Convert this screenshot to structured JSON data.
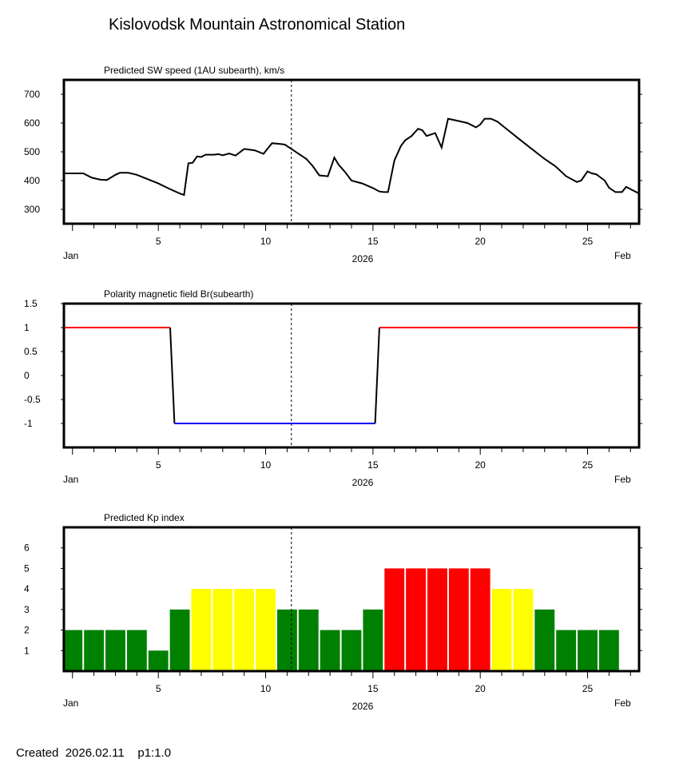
{
  "page": {
    "title": "Kislovodsk Mountain Astronomical Station",
    "footer_created_label": "Created",
    "footer_date": "2026.02.11",
    "footer_version": "p1:1.0"
  },
  "x_axis": {
    "range_days": [
      0.6,
      27.4
    ],
    "current_marker_day": 11.2,
    "tick_days": [
      1,
      2,
      3,
      4,
      5,
      6,
      7,
      8,
      9,
      10,
      11,
      12,
      13,
      14,
      15,
      16,
      17,
      18,
      19,
      20,
      21,
      22,
      23,
      24,
      25,
      26,
      27
    ],
    "labeled_ticks": [
      {
        "day": 5,
        "label": "5"
      },
      {
        "day": 10,
        "label": "10"
      },
      {
        "day": 15,
        "label": "15"
      },
      {
        "day": 20,
        "label": "20"
      },
      {
        "day": 25,
        "label": "25"
      }
    ],
    "start_label": "Jan",
    "end_label": "Feb",
    "year_label": "2026"
  },
  "chart_data": [
    {
      "type": "line",
      "title": "Predicted SW speed (1AU subearth), km/s",
      "ylim": [
        250,
        750
      ],
      "yticks": [
        300,
        400,
        500,
        600,
        700
      ],
      "series": [
        {
          "name": "SW speed",
          "color": "#000000",
          "x": [
            0.6,
            1.5,
            1.9,
            2.3,
            2.6,
            3.0,
            3.2,
            3.6,
            4.0,
            4.5,
            5.0,
            5.5,
            6.0,
            6.2,
            6.4,
            6.6,
            6.8,
            7.0,
            7.2,
            7.6,
            7.8,
            8.0,
            8.3,
            8.6,
            9.0,
            9.2,
            9.5,
            9.9,
            10.1,
            10.3,
            10.7,
            10.9,
            11.2,
            11.5,
            11.7,
            11.9,
            12.2,
            12.5,
            12.9,
            13.2,
            13.4,
            13.7,
            14.0,
            14.5,
            15.0,
            15.3,
            15.5,
            15.7,
            16.0,
            16.3,
            16.5,
            16.8,
            17.1,
            17.3,
            17.5,
            17.9,
            18.2,
            18.5,
            19.0,
            19.4,
            19.8,
            20.0,
            20.2,
            20.5,
            20.8,
            21.3,
            21.8,
            22.4,
            23.0,
            23.5,
            24.0,
            24.5,
            24.7,
            25.0,
            25.2,
            25.4,
            25.8,
            26.0,
            26.3,
            26.6,
            26.8,
            27.0,
            27.4
          ],
          "values": [
            425,
            425,
            410,
            403,
            402,
            420,
            427,
            427,
            420,
            405,
            390,
            372,
            355,
            350,
            460,
            462,
            484,
            482,
            490,
            490,
            492,
            488,
            494,
            487,
            510,
            508,
            505,
            493,
            512,
            530,
            527,
            525,
            510,
            495,
            485,
            475,
            450,
            418,
            415,
            480,
            455,
            430,
            400,
            390,
            374,
            362,
            360,
            360,
            470,
            520,
            540,
            555,
            580,
            575,
            555,
            565,
            515,
            615,
            607,
            600,
            585,
            595,
            615,
            615,
            605,
            575,
            545,
            510,
            475,
            450,
            415,
            395,
            400,
            432,
            425,
            422,
            400,
            375,
            360,
            360,
            378,
            370,
            355
          ]
        }
      ]
    },
    {
      "type": "line",
      "title": "Polarity magnetic field  Br(subearth)",
      "ylim": [
        -1.5,
        1.5
      ],
      "yticks": [
        -1,
        -0.5,
        0,
        0.5,
        1,
        1.5
      ],
      "ytick_labels": [
        "-1",
        "-0.5",
        "0",
        "0.5",
        "1",
        "1.5"
      ],
      "series": [
        {
          "name": "positive",
          "color": "#ff0000",
          "x": [
            0.6,
            5.55
          ],
          "values": [
            1,
            1
          ]
        },
        {
          "name": "transition",
          "color": "#000000",
          "x": [
            5.55,
            5.75
          ],
          "values": [
            1,
            -1
          ]
        },
        {
          "name": "negative",
          "color": "#0000ff",
          "x": [
            5.75,
            15.1
          ],
          "values": [
            -1,
            -1
          ]
        },
        {
          "name": "transition",
          "color": "#000000",
          "x": [
            15.1,
            15.3
          ],
          "values": [
            -1,
            1
          ]
        },
        {
          "name": "positive",
          "color": "#ff0000",
          "x": [
            15.3,
            27.4
          ],
          "values": [
            1,
            1
          ]
        }
      ]
    },
    {
      "type": "bar",
      "title": "Predicted Kp index",
      "ylim": [
        0,
        7
      ],
      "yticks": [
        1,
        2,
        3,
        4,
        5,
        6
      ],
      "categories": [
        1,
        2,
        3,
        4,
        5,
        6,
        7,
        8,
        9,
        10,
        11,
        12,
        13,
        14,
        15,
        16,
        17,
        18,
        19,
        20,
        21,
        22,
        23,
        24,
        25,
        26
      ],
      "values": [
        2,
        2,
        2,
        2,
        1,
        3,
        4,
        4,
        4,
        4,
        3,
        3,
        2,
        2,
        3,
        5,
        5,
        5,
        5,
        5,
        4,
        4,
        3,
        2,
        2,
        2
      ],
      "color_scale": {
        "1": "#008000",
        "2": "#008000",
        "3": "#008000",
        "4": "#ffff00",
        "5": "#ff0000"
      }
    }
  ]
}
